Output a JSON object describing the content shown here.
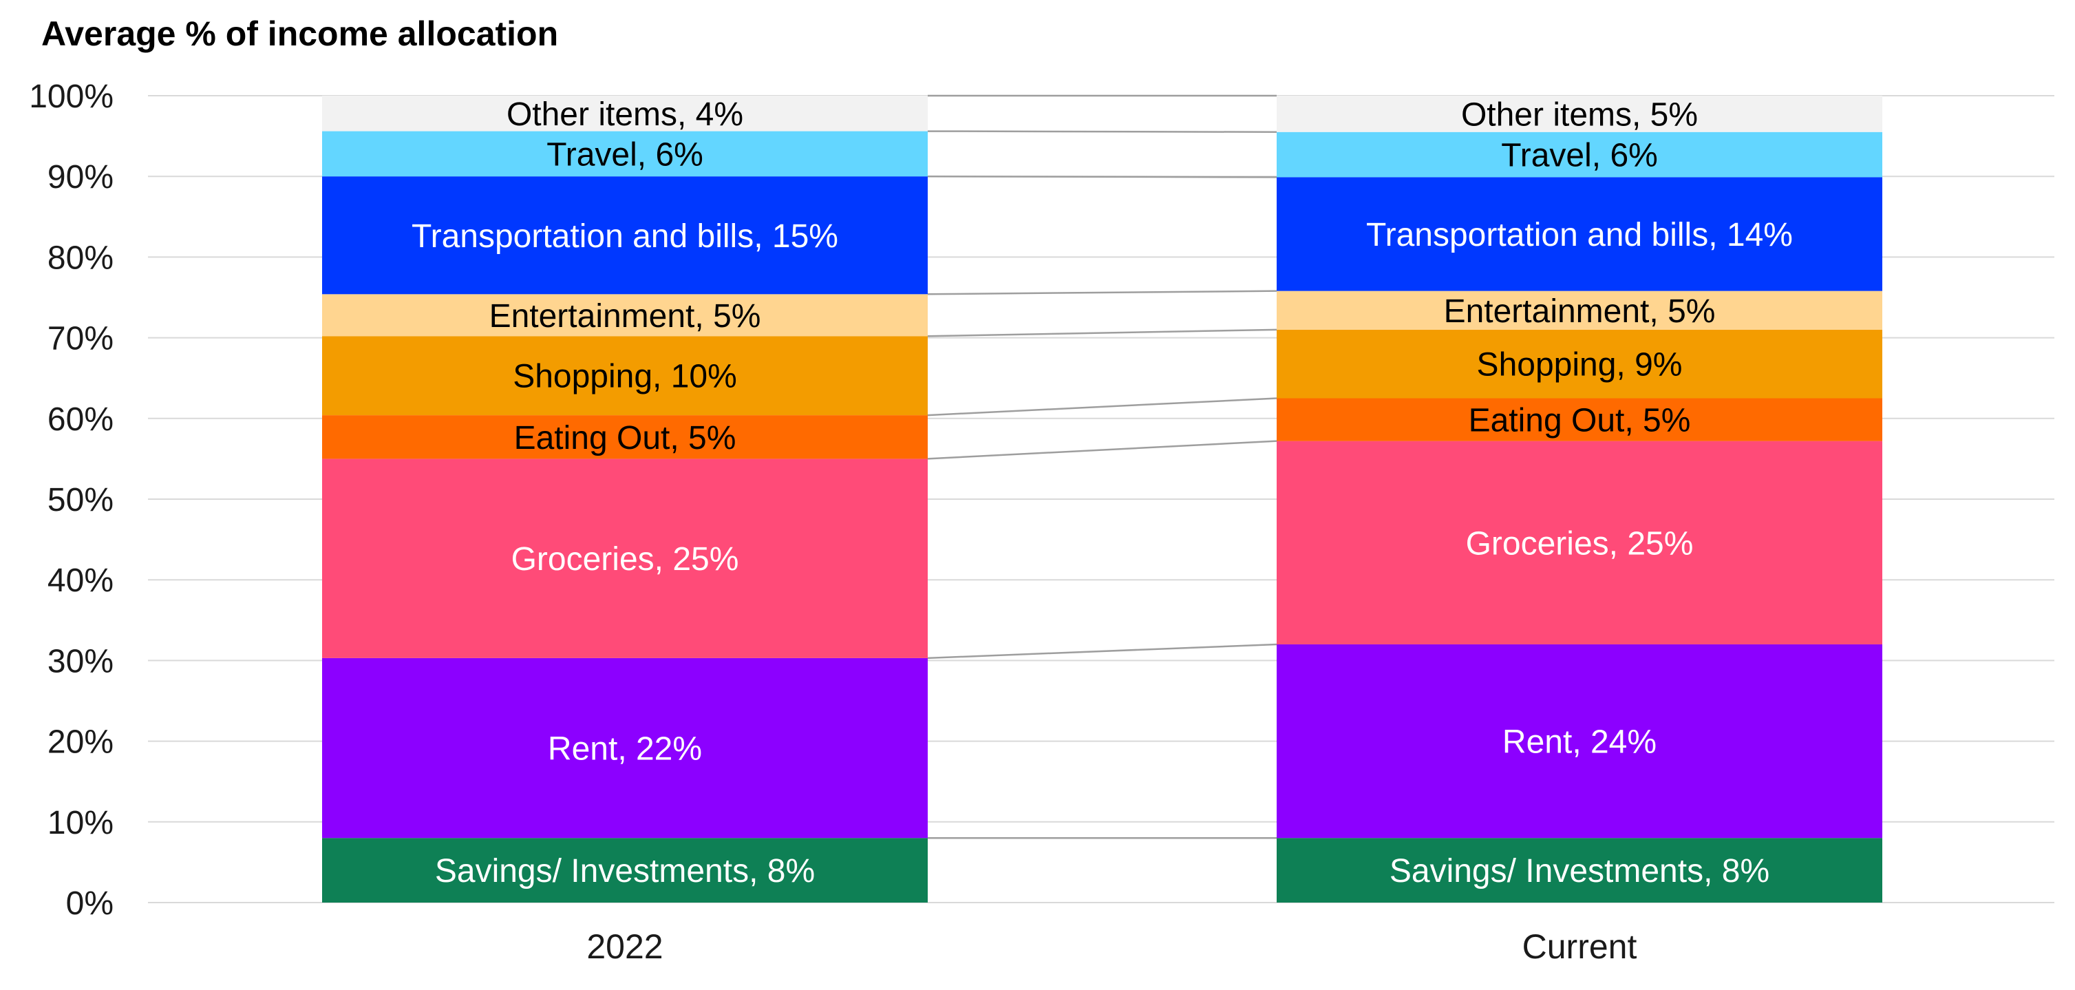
{
  "chart_data": {
    "type": "bar",
    "stacked": true,
    "normalized": true,
    "title": "Average % of income allocation",
    "xlabel": "",
    "ylabel": "",
    "ylim": [
      0,
      100
    ],
    "yticks": [
      "0%",
      "10%",
      "20%",
      "30%",
      "40%",
      "50%",
      "60%",
      "70%",
      "80%",
      "90%",
      "100%"
    ],
    "categories": [
      "2022",
      "Current"
    ],
    "series": [
      {
        "name": "Savings/ Investments",
        "color": "#0e8055",
        "label_color": "#ffffff",
        "values": [
          8,
          8
        ],
        "labels": [
          "Savings/ Investments, 8%",
          "Savings/ Investments, 8%"
        ]
      },
      {
        "name": "Rent",
        "color": "#8c00ff",
        "label_color": "#ffffff",
        "values": [
          22.3,
          24
        ],
        "labels": [
          "Rent, 22%",
          "Rent, 24%"
        ]
      },
      {
        "name": "Groceries",
        "color": "#ff4b78",
        "label_color": "#ffffff",
        "values": [
          24.7,
          25.2
        ],
        "labels": [
          "Groceries, 25%",
          "Groceries, 25%"
        ]
      },
      {
        "name": "Eating Out",
        "color": "#ff6a00",
        "label_color": "#000000",
        "values": [
          5.4,
          5.3
        ],
        "labels": [
          "Eating Out, 5%",
          "Eating Out, 5%"
        ]
      },
      {
        "name": "Shopping",
        "color": "#f39c00",
        "label_color": "#000000",
        "values": [
          9.8,
          8.5
        ],
        "labels": [
          "Shopping, 10%",
          "Shopping, 9%"
        ]
      },
      {
        "name": "Entertainment",
        "color": "#ffd590",
        "label_color": "#000000",
        "values": [
          5.2,
          4.8
        ],
        "labels": [
          "Entertainment, 5%",
          "Entertainment, 5%"
        ]
      },
      {
        "name": "Transportation and bills",
        "color": "#0038ff",
        "label_color": "#ffffff",
        "values": [
          14.6,
          14.1
        ],
        "labels": [
          "Transportation and bills, 15%",
          "Transportation and bills, 14%"
        ]
      },
      {
        "name": "Travel",
        "color": "#63d6ff",
        "label_color": "#000000",
        "values": [
          5.6,
          5.6
        ],
        "labels": [
          "Travel, 6%",
          "Travel, 6%"
        ]
      },
      {
        "name": "Other items",
        "color": "#f2f2f2",
        "label_color": "#000000",
        "values": [
          4.4,
          4.5
        ],
        "labels": [
          "Other items, 4%",
          "Other items, 5%"
        ]
      }
    ]
  }
}
